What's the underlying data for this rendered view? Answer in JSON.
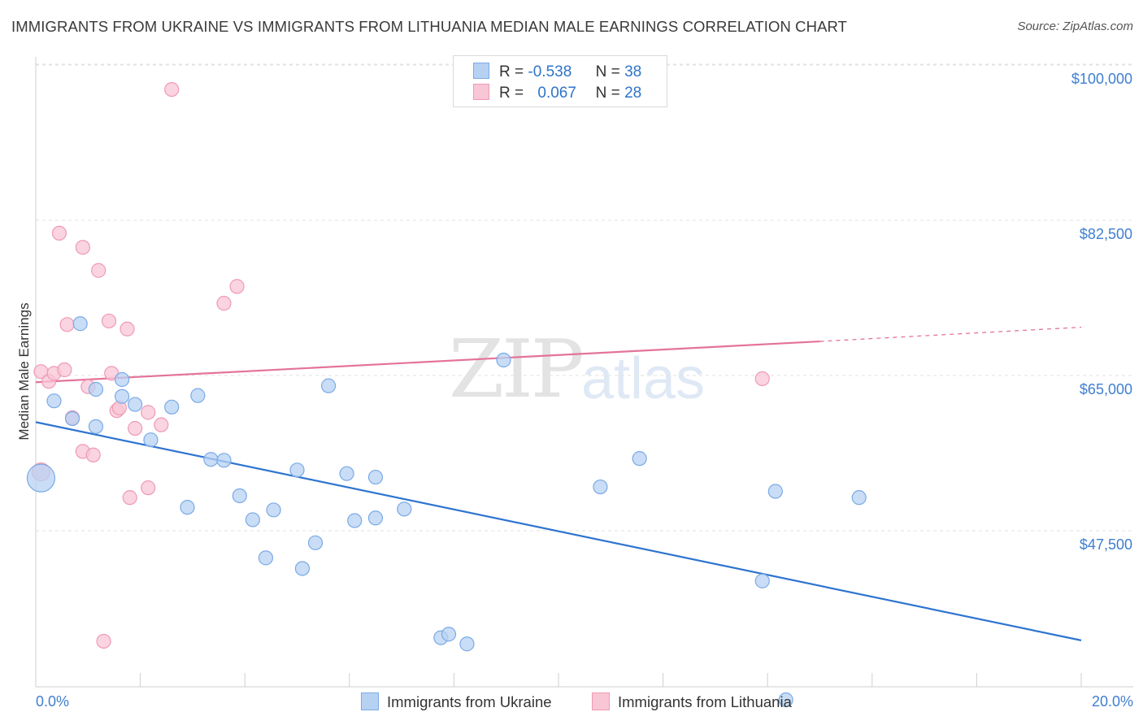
{
  "title": "IMMIGRANTS FROM UKRAINE VS IMMIGRANTS FROM LITHUANIA MEDIAN MALE EARNINGS CORRELATION CHART",
  "source": "Source: ZipAtlas.com",
  "watermark": {
    "zip": "ZIP",
    "atlas": "atlas"
  },
  "legend": {
    "rows": [
      {
        "r_label": "R =",
        "r_value": "-0.538",
        "n_label": "N =",
        "n_value": "38"
      },
      {
        "r_label": "R =",
        "r_value": "0.067",
        "n_label": "N =",
        "n_value": "28"
      }
    ]
  },
  "colors": {
    "ukraine_fill": "#b7d1f3",
    "ukraine_stroke": "#7aaae6",
    "ukraine_line": "#2e74d0",
    "lithuania_fill": "#f8c6d5",
    "lithuania_stroke": "#ef9ab4",
    "lithuania_line": "#e4739a",
    "tick_label": "#3f7fd0"
  },
  "chart_data": {
    "type": "scatter",
    "title": "IMMIGRANTS FROM UKRAINE VS IMMIGRANTS FROM LITHUANIA MEDIAN MALE EARNINGS CORRELATION CHART",
    "xlabel": "",
    "ylabel": "Median Male Earnings",
    "xlim": [
      0,
      20
    ],
    "ylim": [
      30000,
      102000
    ],
    "x_tick_labels": [
      "0.0%",
      "20.0%"
    ],
    "y_ticks": [
      47500,
      65000,
      82500,
      100000
    ],
    "y_tick_labels": [
      "$47,500",
      "$65,000",
      "$82,500",
      "$100,000"
    ],
    "grid": true,
    "legend_position": "top-center",
    "series": [
      {
        "name": "Immigrants from Ukraine",
        "points": [
          [
            0.1,
            55000
          ],
          [
            0.35,
            63700
          ],
          [
            0.7,
            61700
          ],
          [
            0.85,
            72400
          ],
          [
            1.15,
            65000
          ],
          [
            1.65,
            66100
          ],
          [
            1.15,
            60800
          ],
          [
            1.65,
            64200
          ],
          [
            1.9,
            63300
          ],
          [
            2.2,
            59300
          ],
          [
            2.6,
            63000
          ],
          [
            3.1,
            64300
          ],
          [
            2.9,
            51700
          ],
          [
            3.35,
            57100
          ],
          [
            3.6,
            57000
          ],
          [
            3.9,
            53000
          ],
          [
            4.15,
            50300
          ],
          [
            4.4,
            46000
          ],
          [
            4.55,
            51400
          ],
          [
            5.0,
            55900
          ],
          [
            5.1,
            44800
          ],
          [
            5.35,
            47700
          ],
          [
            5.6,
            65400
          ],
          [
            5.95,
            55500
          ],
          [
            6.1,
            50200
          ],
          [
            6.5,
            50500
          ],
          [
            6.5,
            55100
          ],
          [
            7.05,
            51500
          ],
          [
            7.75,
            37000
          ],
          [
            7.9,
            37400
          ],
          [
            8.25,
            36300
          ],
          [
            8.95,
            68300
          ],
          [
            10.8,
            54000
          ],
          [
            11.55,
            57200
          ],
          [
            13.9,
            43400
          ],
          [
            14.15,
            53500
          ],
          [
            15.75,
            52800
          ],
          [
            14.35,
            30000
          ]
        ]
      },
      {
        "name": "Immigrants from Lithuania",
        "points": [
          [
            0.1,
            55700
          ],
          [
            0.1,
            67000
          ],
          [
            0.25,
            65900
          ],
          [
            0.35,
            66800
          ],
          [
            0.45,
            82600
          ],
          [
            0.55,
            67200
          ],
          [
            0.6,
            72300
          ],
          [
            0.7,
            61800
          ],
          [
            0.9,
            58000
          ],
          [
            0.9,
            81000
          ],
          [
            1.0,
            65300
          ],
          [
            1.1,
            57600
          ],
          [
            1.2,
            78400
          ],
          [
            1.3,
            36600
          ],
          [
            1.4,
            72700
          ],
          [
            1.45,
            66800
          ],
          [
            1.55,
            62600
          ],
          [
            1.6,
            62900
          ],
          [
            1.75,
            71800
          ],
          [
            1.8,
            52800
          ],
          [
            1.9,
            60600
          ],
          [
            2.15,
            62400
          ],
          [
            2.15,
            53900
          ],
          [
            2.4,
            61000
          ],
          [
            2.6,
            98800
          ],
          [
            3.6,
            74700
          ],
          [
            3.85,
            76600
          ],
          [
            13.9,
            66200
          ]
        ]
      }
    ],
    "trend_lines": [
      {
        "series": "Immigrants from Ukraine",
        "x": [
          0,
          20
        ],
        "y": [
          61300,
          36700
        ]
      },
      {
        "series": "Immigrants from Lithuania",
        "x": [
          0,
          15
        ],
        "y": [
          65800,
          70400
        ],
        "dashed_extension_to": [
          20,
          72000
        ]
      }
    ]
  },
  "bottom_legend": [
    "Immigrants from Ukraine",
    "Immigrants from Lithuania"
  ]
}
